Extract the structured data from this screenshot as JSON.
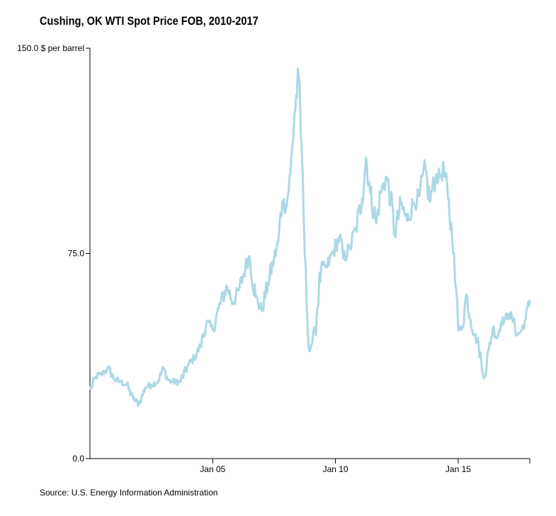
{
  "title": "Cushing, OK WTI Spot Price FOB, 2010-2017",
  "source": "Source: U.S. Energy Information Administration",
  "chart_data": {
    "type": "line",
    "title": "Cushing, OK WTI Spot Price FOB, 2010-2017",
    "xlabel": "",
    "ylabel": "$ per barrel",
    "ylim": [
      0,
      150
    ],
    "xlim": [
      "2000-01",
      "2017-12"
    ],
    "y_ticks": [
      {
        "value": 0,
        "label": "0.0"
      },
      {
        "value": 75,
        "label": "75.0"
      },
      {
        "value": 150,
        "label": "150.0 $ per barrel"
      }
    ],
    "x_ticks": [
      {
        "value": "2005-01",
        "label": "Jan 05"
      },
      {
        "value": "2010-01",
        "label": "Jan 10"
      },
      {
        "value": "2015-01",
        "label": "Jan 15"
      }
    ],
    "color": "#add8e6",
    "grid": false,
    "series": [
      {
        "x": [
          "2000-01",
          "2000-04",
          "2000-07",
          "2000-10",
          "2001-01",
          "2001-04",
          "2001-07",
          "2001-10",
          "2002-01",
          "2002-04",
          "2002-07",
          "2002-10",
          "2003-01",
          "2003-03",
          "2003-05",
          "2003-09",
          "2004-01",
          "2004-04",
          "2004-07",
          "2004-10",
          "2005-01",
          "2005-04",
          "2005-08",
          "2005-11",
          "2006-02",
          "2006-05",
          "2006-07",
          "2006-10",
          "2007-01",
          "2007-04",
          "2007-07",
          "2007-09",
          "2007-11",
          "2008-01",
          "2008-03",
          "2008-05",
          "2008-07",
          "2008-08",
          "2008-09",
          "2008-10",
          "2008-11",
          "2008-12",
          "2009-01",
          "2009-03",
          "2009-06",
          "2009-09",
          "2009-12",
          "2010-03",
          "2010-05",
          "2010-08",
          "2010-11",
          "2011-02",
          "2011-04",
          "2011-06",
          "2011-09",
          "2011-11",
          "2012-02",
          "2012-04",
          "2012-06",
          "2012-09",
          "2012-12",
          "2013-03",
          "2013-06",
          "2013-09",
          "2013-11",
          "2014-02",
          "2014-04",
          "2014-06",
          "2014-08",
          "2014-10",
          "2014-11",
          "2014-12",
          "2015-01",
          "2015-03",
          "2015-05",
          "2015-07",
          "2015-09",
          "2015-11",
          "2016-01",
          "2016-02",
          "2016-04",
          "2016-06",
          "2016-08",
          "2016-10",
          "2016-12",
          "2017-02",
          "2017-04",
          "2017-06",
          "2017-08",
          "2017-10",
          "2017-12"
        ],
        "y": [
          25,
          30,
          31,
          33,
          29,
          28,
          27,
          22,
          20,
          26,
          27,
          28,
          33,
          29,
          28,
          28,
          34,
          37,
          41,
          50,
          47,
          55,
          63,
          57,
          62,
          70,
          74,
          59,
          54,
          64,
          73,
          79,
          94,
          92,
          104,
          126,
          140,
          120,
          104,
          75,
          55,
          40,
          41,
          47,
          70,
          70,
          76,
          81,
          73,
          77,
          84,
          95,
          110,
          97,
          86,
          97,
          103,
          95,
          82,
          93,
          87,
          93,
          96,
          106,
          94,
          103,
          103,
          106,
          95,
          81,
          75,
          62,
          47,
          48,
          60,
          51,
          45,
          42,
          31,
          30,
          40,
          48,
          44,
          50,
          51,
          53,
          50,
          45,
          47,
          51,
          58
        ]
      }
    ]
  }
}
